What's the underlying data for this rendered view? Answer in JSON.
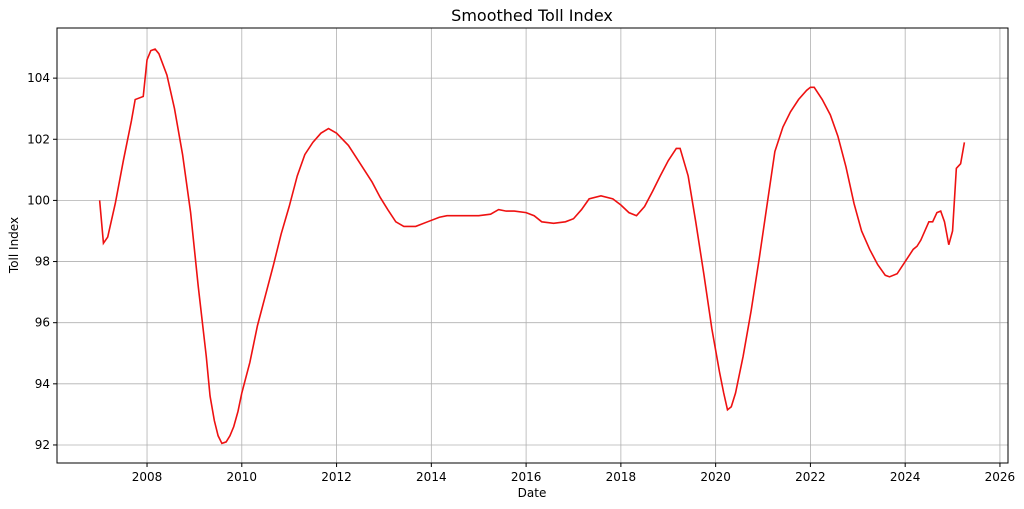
{
  "chart_data": {
    "type": "line",
    "title": "Smoothed Toll Index",
    "xlabel": "Date",
    "ylabel": "Toll Index",
    "x": [
      2007.0,
      2007.08,
      2007.17,
      2007.33,
      2007.5,
      2007.67,
      2007.75,
      2007.92,
      2008.0,
      2008.08,
      2008.17,
      2008.25,
      2008.42,
      2008.58,
      2008.75,
      2008.92,
      2009.08,
      2009.25,
      2009.33,
      2009.42,
      2009.5,
      2009.58,
      2009.67,
      2009.75,
      2009.83,
      2009.92,
      2010.0,
      2010.17,
      2010.33,
      2010.5,
      2010.67,
      2010.83,
      2011.0,
      2011.17,
      2011.33,
      2011.5,
      2011.67,
      2011.83,
      2012.0,
      2012.25,
      2012.5,
      2012.75,
      2012.92,
      2013.08,
      2013.25,
      2013.42,
      2013.67,
      2013.92,
      2014.17,
      2014.33,
      2014.5,
      2014.75,
      2015.0,
      2015.25,
      2015.42,
      2015.58,
      2015.75,
      2016.0,
      2016.17,
      2016.33,
      2016.58,
      2016.83,
      2017.0,
      2017.17,
      2017.33,
      2017.58,
      2017.83,
      2018.0,
      2018.17,
      2018.33,
      2018.5,
      2018.67,
      2018.83,
      2019.0,
      2019.17,
      2019.25,
      2019.42,
      2019.58,
      2019.75,
      2019.92,
      2020.08,
      2020.17,
      2020.25,
      2020.33,
      2020.42,
      2020.58,
      2020.75,
      2020.92,
      2021.08,
      2021.25,
      2021.42,
      2021.58,
      2021.75,
      2021.92,
      2022.0,
      2022.08,
      2022.25,
      2022.42,
      2022.58,
      2022.75,
      2022.92,
      2023.08,
      2023.25,
      2023.42,
      2023.58,
      2023.67,
      2023.83,
      2024.0,
      2024.17,
      2024.25,
      2024.33,
      2024.5,
      2024.58,
      2024.67,
      2024.75,
      2024.83,
      2024.92,
      2025.0,
      2025.08,
      2025.17,
      2025.25
    ],
    "series": [
      {
        "name": "Toll Index",
        "color": "#ee1111",
        "values": [
          100.0,
          98.6,
          98.8,
          99.9,
          101.3,
          102.6,
          103.3,
          103.4,
          104.6,
          104.9,
          104.95,
          104.8,
          104.1,
          103.0,
          101.5,
          99.6,
          97.2,
          94.9,
          93.6,
          92.8,
          92.3,
          92.05,
          92.1,
          92.3,
          92.6,
          93.1,
          93.7,
          94.7,
          95.9,
          96.9,
          97.9,
          98.9,
          99.8,
          100.8,
          101.5,
          101.9,
          102.2,
          102.35,
          102.2,
          101.8,
          101.2,
          100.6,
          100.1,
          99.7,
          99.3,
          99.15,
          99.15,
          99.3,
          99.45,
          99.5,
          99.5,
          99.5,
          99.5,
          99.55,
          99.7,
          99.65,
          99.65,
          99.6,
          99.5,
          99.3,
          99.25,
          99.3,
          99.4,
          99.7,
          100.05,
          100.15,
          100.05,
          99.85,
          99.6,
          99.5,
          99.8,
          100.3,
          100.8,
          101.3,
          101.7,
          101.7,
          100.8,
          99.3,
          97.6,
          95.8,
          94.4,
          93.7,
          93.15,
          93.25,
          93.7,
          94.9,
          96.4,
          98.1,
          99.8,
          101.6,
          102.4,
          102.9,
          103.3,
          103.6,
          103.7,
          103.7,
          103.3,
          102.8,
          102.1,
          101.1,
          99.9,
          99.0,
          98.4,
          97.9,
          97.55,
          97.5,
          97.6,
          98.0,
          98.4,
          98.5,
          98.7,
          99.3,
          99.3,
          99.6,
          99.65,
          99.3,
          98.55,
          99.0,
          101.05,
          101.2,
          101.9
        ]
      }
    ],
    "xlim": [
      2006.1,
      2026.17
    ],
    "ylim": [
      91.41,
      105.64
    ],
    "xticks": [
      2008,
      2010,
      2012,
      2014,
      2016,
      2018,
      2020,
      2022,
      2024,
      2026
    ],
    "yticks": [
      92,
      94,
      96,
      98,
      100,
      102,
      104
    ],
    "grid": true
  }
}
